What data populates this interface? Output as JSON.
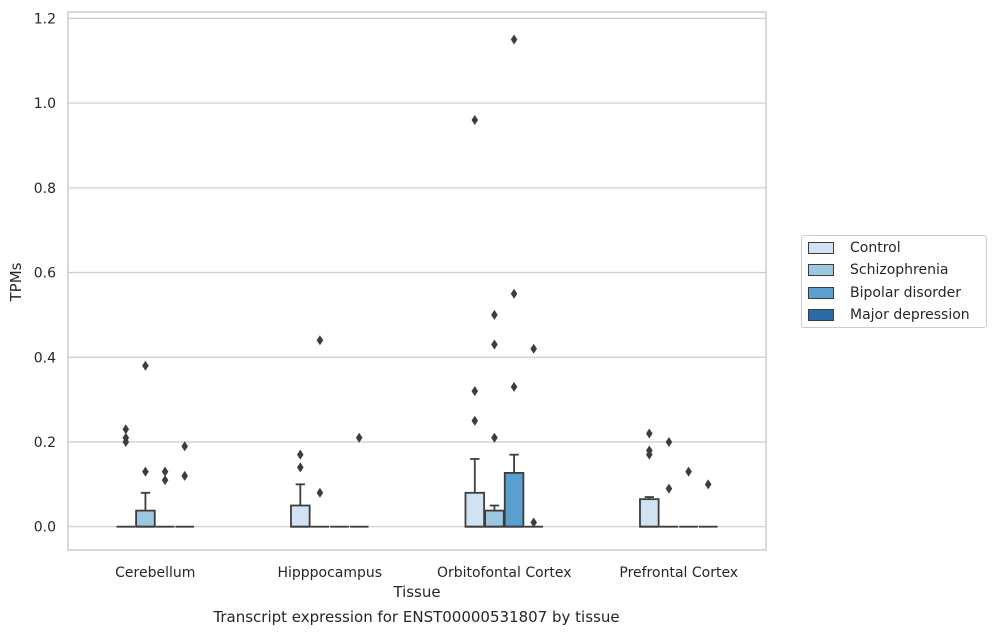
{
  "caption": "Transcript expression for ENST00000531807 by tissue",
  "chart_data": {
    "type": "box",
    "title": "",
    "xlabel": "Tissue",
    "ylabel": "TPMs",
    "ylim": [
      -0.055,
      1.215
    ],
    "yticks": [
      "0.0",
      "0.2",
      "0.4",
      "0.6",
      "0.8",
      "1.0",
      "1.2"
    ],
    "grid": "horizontal",
    "legend_position": "right",
    "categories": [
      "Cerebellum",
      "Hipppocampus",
      "Orbitofontal Cortex",
      "Prefrontal Cortex"
    ],
    "series": [
      {
        "name": "Control",
        "color": "#d1e2f2",
        "boxes": [
          {
            "q1": 0,
            "median": 0,
            "q3": 0,
            "whisker_low": 0,
            "whisker_high": 0,
            "outliers": [
              0.23,
              0.21,
              0.2
            ]
          },
          {
            "q1": 0,
            "median": 0,
            "q3": 0.05,
            "whisker_low": 0,
            "whisker_high": 0.1,
            "outliers": [
              0.17,
              0.14
            ]
          },
          {
            "q1": 0,
            "median": 0,
            "q3": 0.08,
            "whisker_low": 0,
            "whisker_high": 0.16,
            "outliers": [
              0.96,
              0.32,
              0.25
            ]
          },
          {
            "q1": 0,
            "median": 0,
            "q3": 0.065,
            "whisker_low": 0,
            "whisker_high": 0.07,
            "outliers": [
              0.22,
              0.18,
              0.17
            ]
          }
        ]
      },
      {
        "name": "Schizophrenia",
        "color": "#9dc6e0",
        "boxes": [
          {
            "q1": 0,
            "median": 0,
            "q3": 0.038,
            "whisker_low": 0,
            "whisker_high": 0.08,
            "outliers": [
              0.38,
              0.13
            ]
          },
          {
            "q1": 0,
            "median": 0,
            "q3": 0,
            "whisker_low": 0,
            "whisker_high": 0,
            "outliers": [
              0.44,
              0.08
            ]
          },
          {
            "q1": 0,
            "median": 0,
            "q3": 0.038,
            "whisker_low": 0,
            "whisker_high": 0.05,
            "outliers": [
              0.5,
              0.43,
              0.21
            ]
          },
          {
            "q1": 0,
            "median": 0,
            "q3": 0,
            "whisker_low": 0,
            "whisker_high": 0,
            "outliers": [
              0.2,
              0.09
            ]
          }
        ]
      },
      {
        "name": "Bipolar disorder",
        "color": "#5a9fcd",
        "boxes": [
          {
            "q1": 0,
            "median": 0,
            "q3": 0,
            "whisker_low": 0,
            "whisker_high": 0,
            "outliers": [
              0.13,
              0.11
            ]
          },
          {
            "q1": 0,
            "median": 0,
            "q3": 0,
            "whisker_low": 0,
            "whisker_high": 0,
            "outliers": []
          },
          {
            "q1": 0,
            "median": 0,
            "q3": 0.127,
            "whisker_low": 0,
            "whisker_high": 0.17,
            "outliers": [
              1.15,
              0.55,
              0.33
            ]
          },
          {
            "q1": 0,
            "median": 0,
            "q3": 0,
            "whisker_low": 0,
            "whisker_high": 0,
            "outliers": [
              0.13
            ]
          }
        ]
      },
      {
        "name": "Major depression",
        "color": "#2b6ca8",
        "boxes": [
          {
            "q1": 0,
            "median": 0,
            "q3": 0,
            "whisker_low": 0,
            "whisker_high": 0,
            "outliers": [
              0.19,
              0.12
            ]
          },
          {
            "q1": 0,
            "median": 0,
            "q3": 0,
            "whisker_low": 0,
            "whisker_high": 0,
            "outliers": [
              0.21
            ]
          },
          {
            "q1": 0,
            "median": 0,
            "q3": 0,
            "whisker_low": 0,
            "whisker_high": 0,
            "outliers": [
              0.42,
              0.01
            ]
          },
          {
            "q1": 0,
            "median": 0,
            "q3": 0,
            "whisker_low": 0,
            "whisker_high": 0,
            "outliers": [
              0.1
            ]
          }
        ]
      }
    ]
  }
}
